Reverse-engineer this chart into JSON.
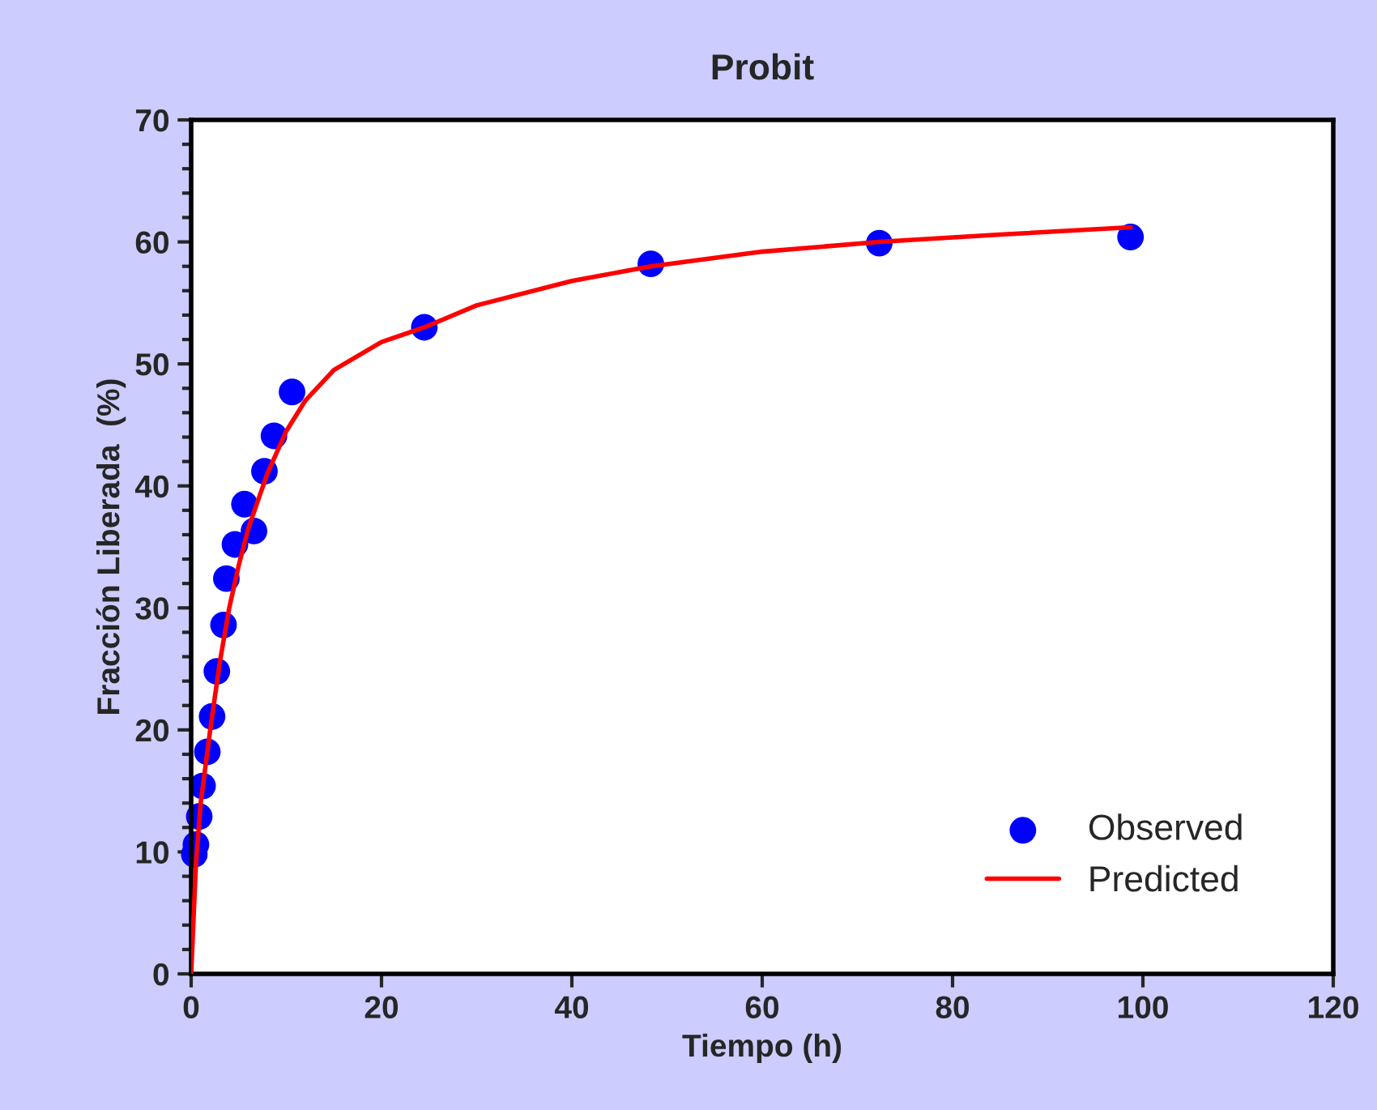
{
  "chart_data": {
    "type": "scatter",
    "title": "Probit",
    "xlabel": "Tiempo (h)",
    "ylabel": "Fracción Liberada  (%)",
    "xlim": [
      0,
      120
    ],
    "xticks": [
      0,
      20,
      40,
      60,
      80,
      100,
      120
    ],
    "ylim": [
      0,
      70
    ],
    "yticks": [
      0,
      10,
      20,
      30,
      40,
      50,
      60,
      70
    ],
    "grid": false,
    "legend": "bottom right",
    "series": [
      {
        "name": "Observed",
        "color": "#0000ff",
        "marker": "circle",
        "x": [
          0.33,
          0.5,
          0.85,
          1.2,
          1.7,
          2.2,
          2.7,
          3.4,
          3.7,
          4.6,
          5.6,
          6.6,
          7.7,
          8.7,
          10.6,
          24.5,
          48.3,
          72.3,
          98.7
        ],
        "values": [
          9.8,
          10.6,
          12.9,
          15.4,
          18.2,
          21.1,
          24.8,
          28.6,
          32.4,
          35.2,
          38.5,
          36.3,
          41.2,
          44.1,
          47.7,
          53.0,
          58.2,
          59.9,
          60.4
        ]
      },
      {
        "name": "Predicted",
        "type": "line",
        "color": "#ff0000",
        "line_style": "solid",
        "x": [
          0,
          0.5,
          1,
          2,
          3,
          4,
          5,
          6,
          8,
          10,
          12,
          15,
          20,
          24.5,
          30,
          40,
          48.3,
          60,
          72.3,
          85,
          98.7
        ],
        "values": [
          0,
          9,
          14,
          20,
          25.5,
          30,
          33.5,
          36.5,
          41,
          44.5,
          47,
          49.5,
          51.8,
          53,
          54.8,
          56.8,
          58,
          59.2,
          60,
          60.6,
          61.2
        ]
      }
    ]
  }
}
